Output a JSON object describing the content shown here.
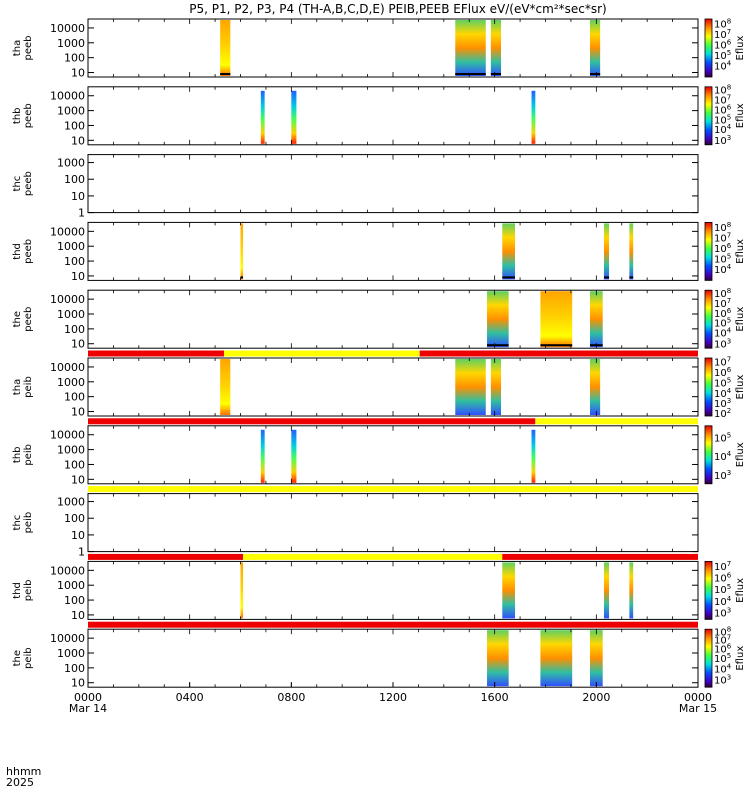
{
  "chart_data": {
    "type": "heatmap",
    "title": "P5, P1, P2, P3, P4 (TH-A,B,C,D,E) PEIB,PEEB EFlux eV/(eV*cm²*sec*sr)",
    "xlabel": "hhmm 2025",
    "x_axis": {
      "unit_label": "hhmm",
      "year_label": "2025",
      "range_hours": [
        0,
        24
      ],
      "ticks": [
        {
          "hour": 0,
          "label": "0000",
          "sub": "Mar 14"
        },
        {
          "hour": 4,
          "label": "0400",
          "sub": ""
        },
        {
          "hour": 8,
          "label": "0800",
          "sub": ""
        },
        {
          "hour": 12,
          "label": "1200",
          "sub": ""
        },
        {
          "hour": 16,
          "label": "1600",
          "sub": ""
        },
        {
          "hour": 20,
          "label": "2000",
          "sub": ""
        },
        {
          "hour": 24,
          "label": "0000",
          "sub": "Mar 15"
        }
      ]
    },
    "colorbar_label": "Eflux",
    "panels": [
      {
        "id": "tha-peeb",
        "probe": "tha",
        "instrument": "peeb",
        "ylim": [
          5,
          40000
        ],
        "ylabels": [
          "10000",
          "1000",
          "100",
          "10"
        ],
        "colorbar": {
          "ticks": [
            {
              "exp": "8",
              "pos": 0.08
            },
            {
              "exp": "7",
              "pos": 0.26
            },
            {
              "exp": "6",
              "pos": 0.44
            },
            {
              "exp": "5",
              "pos": 0.62
            },
            {
              "exp": "4",
              "pos": 0.8
            }
          ]
        },
        "mode_bar": null,
        "bursts": [
          {
            "start": 5.2,
            "end": 5.6,
            "style": "hot"
          },
          {
            "start": 14.45,
            "end": 15.65,
            "style": "mix"
          },
          {
            "start": 15.85,
            "end": 16.25,
            "style": "mix"
          },
          {
            "start": 19.75,
            "end": 20.15,
            "style": "mix"
          }
        ]
      },
      {
        "id": "thb-peeb",
        "probe": "thb",
        "instrument": "peeb",
        "ylim": [
          5,
          40000
        ],
        "ylabels": [
          "10000",
          "1000",
          "100",
          "10"
        ],
        "colorbar": {
          "ticks": [
            {
              "exp": "8",
              "pos": 0.05
            },
            {
              "exp": "7",
              "pos": 0.22
            },
            {
              "exp": "6",
              "pos": 0.39
            },
            {
              "exp": "5",
              "pos": 0.56
            },
            {
              "exp": "4",
              "pos": 0.73
            },
            {
              "exp": "3",
              "pos": 0.92
            }
          ]
        },
        "mode_bar": null,
        "bursts": [
          {
            "start": 6.8,
            "end": 6.95,
            "style": "cool"
          },
          {
            "start": 8.0,
            "end": 8.2,
            "style": "cool"
          },
          {
            "start": 17.45,
            "end": 17.6,
            "style": "cool"
          }
        ]
      },
      {
        "id": "thc-peeb",
        "probe": "thc",
        "instrument": "peeb",
        "ylim": [
          1,
          3000
        ],
        "ylabels": [
          "1000",
          "100",
          "10",
          "1"
        ],
        "colorbar": null,
        "mode_bar": null,
        "bursts": []
      },
      {
        "id": "thd-peeb",
        "probe": "thd",
        "instrument": "peeb",
        "ylim": [
          5,
          40000
        ],
        "ylabels": [
          "10000",
          "1000",
          "100",
          "10"
        ],
        "colorbar": {
          "ticks": [
            {
              "exp": "8",
              "pos": 0.08
            },
            {
              "exp": "7",
              "pos": 0.26
            },
            {
              "exp": "6",
              "pos": 0.44
            },
            {
              "exp": "5",
              "pos": 0.62
            },
            {
              "exp": "4",
              "pos": 0.8
            }
          ]
        },
        "mode_bar": null,
        "bursts": [
          {
            "start": 6.0,
            "end": 6.1,
            "style": "hot"
          },
          {
            "start": 16.3,
            "end": 16.8,
            "style": "mix"
          },
          {
            "start": 20.3,
            "end": 20.5,
            "style": "mix"
          },
          {
            "start": 21.3,
            "end": 21.45,
            "style": "mix"
          }
        ]
      },
      {
        "id": "the-peeb",
        "probe": "the",
        "instrument": "peeb",
        "ylim": [
          5,
          40000
        ],
        "ylabels": [
          "10000",
          "1000",
          "100",
          "10"
        ],
        "colorbar": {
          "ticks": [
            {
              "exp": "8",
              "pos": 0.05
            },
            {
              "exp": "7",
              "pos": 0.22
            },
            {
              "exp": "6",
              "pos": 0.39
            },
            {
              "exp": "5",
              "pos": 0.56
            },
            {
              "exp": "4",
              "pos": 0.73
            },
            {
              "exp": "3",
              "pos": 0.92
            }
          ]
        },
        "mode_bar": null,
        "bursts": [
          {
            "start": 15.7,
            "end": 16.55,
            "style": "mix"
          },
          {
            "start": 17.8,
            "end": 19.05,
            "style": "hot"
          },
          {
            "start": 19.75,
            "end": 20.25,
            "style": "mix"
          }
        ]
      },
      {
        "id": "tha-peib",
        "probe": "tha",
        "instrument": "peib",
        "ylim": [
          5,
          40000
        ],
        "ylabels": [
          "10000",
          "1000",
          "100",
          "10"
        ],
        "colorbar": {
          "ticks": [
            {
              "exp": "7",
              "pos": 0.06
            },
            {
              "exp": "6",
              "pos": 0.24
            },
            {
              "exp": "5",
              "pos": 0.42
            },
            {
              "exp": "4",
              "pos": 0.6
            },
            {
              "exp": "3",
              "pos": 0.78
            },
            {
              "exp": "2",
              "pos": 0.95
            }
          ]
        },
        "mode_bar": [
          {
            "start": 0,
            "end": 5.35,
            "color": "#ee0000"
          },
          {
            "start": 5.35,
            "end": 13.05,
            "color": "#ffff00"
          },
          {
            "start": 13.05,
            "end": 24,
            "color": "#ee0000"
          }
        ],
        "bursts": [
          {
            "start": 5.2,
            "end": 5.6,
            "style": "hot"
          },
          {
            "start": 14.45,
            "end": 15.65,
            "style": "mix"
          },
          {
            "start": 15.85,
            "end": 16.25,
            "style": "mix"
          },
          {
            "start": 19.75,
            "end": 20.15,
            "style": "mix"
          }
        ]
      },
      {
        "id": "thb-peib",
        "probe": "thb",
        "instrument": "peib",
        "ylim": [
          5,
          40000
        ],
        "ylabels": [
          "10000",
          "1000",
          "100",
          "10"
        ],
        "colorbar": {
          "ticks": [
            {
              "exp": "5",
              "pos": 0.2
            },
            {
              "exp": "4",
              "pos": 0.52
            },
            {
              "exp": "3",
              "pos": 0.85
            }
          ]
        },
        "mode_bar": [
          {
            "start": 0,
            "end": 17.6,
            "color": "#ee0000"
          },
          {
            "start": 17.6,
            "end": 24,
            "color": "#ffff00"
          }
        ],
        "bursts": [
          {
            "start": 6.8,
            "end": 6.95,
            "style": "cool"
          },
          {
            "start": 8.0,
            "end": 8.2,
            "style": "cool"
          },
          {
            "start": 17.45,
            "end": 17.6,
            "style": "cool"
          }
        ]
      },
      {
        "id": "thc-peib",
        "probe": "thc",
        "instrument": "peib",
        "ylim": [
          1,
          3000
        ],
        "ylabels": [
          "1000",
          "100",
          "10",
          "1"
        ],
        "colorbar": null,
        "mode_bar": [
          {
            "start": 0,
            "end": 24,
            "color": "#ffff00"
          }
        ],
        "bursts": []
      },
      {
        "id": "thd-peib",
        "probe": "thd",
        "instrument": "peib",
        "ylim": [
          5,
          40000
        ],
        "ylabels": [
          "10000",
          "1000",
          "100",
          "10"
        ],
        "colorbar": {
          "ticks": [
            {
              "exp": "7",
              "pos": 0.08
            },
            {
              "exp": "6",
              "pos": 0.28
            },
            {
              "exp": "5",
              "pos": 0.48
            },
            {
              "exp": "4",
              "pos": 0.68
            },
            {
              "exp": "3",
              "pos": 0.88
            }
          ]
        },
        "mode_bar": [
          {
            "start": 0,
            "end": 6.1,
            "color": "#ee0000"
          },
          {
            "start": 6.1,
            "end": 16.3,
            "color": "#ffff00"
          },
          {
            "start": 16.3,
            "end": 24,
            "color": "#ee0000"
          }
        ],
        "bursts": [
          {
            "start": 6.0,
            "end": 6.1,
            "style": "hot"
          },
          {
            "start": 16.3,
            "end": 16.8,
            "style": "mix"
          },
          {
            "start": 20.3,
            "end": 20.5,
            "style": "mix"
          },
          {
            "start": 21.3,
            "end": 21.45,
            "style": "mix"
          }
        ]
      },
      {
        "id": "the-peib",
        "probe": "the",
        "instrument": "peib",
        "ylim": [
          5,
          40000
        ],
        "ylabels": [
          "10000",
          "1000",
          "100",
          "10"
        ],
        "colorbar": {
          "ticks": [
            {
              "exp": "8",
              "pos": 0.04
            },
            {
              "exp": "7",
              "pos": 0.18
            },
            {
              "exp": "6",
              "pos": 0.33
            },
            {
              "exp": "5",
              "pos": 0.5
            },
            {
              "exp": "4",
              "pos": 0.68
            },
            {
              "exp": "3",
              "pos": 0.87
            }
          ]
        },
        "mode_bar": [
          {
            "start": 0,
            "end": 24,
            "color": "#ee0000"
          }
        ],
        "bursts": [
          {
            "start": 15.7,
            "end": 16.55,
            "style": "mix"
          },
          {
            "start": 17.8,
            "end": 19.05,
            "style": "mix"
          },
          {
            "start": 19.75,
            "end": 20.25,
            "style": "mix"
          }
        ]
      }
    ]
  }
}
